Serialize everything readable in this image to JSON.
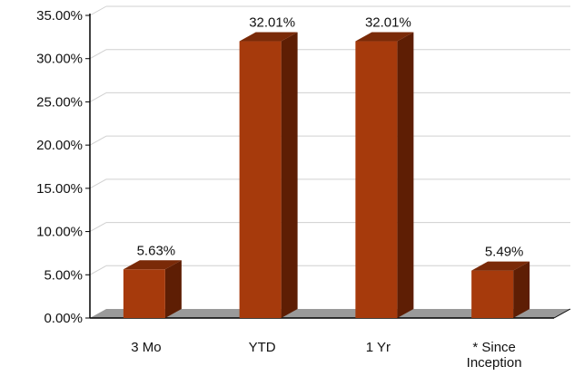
{
  "chart_data": {
    "type": "bar",
    "style": "3d-column",
    "categories": [
      "3 Mo",
      "YTD",
      "1 Yr",
      "* Since Inception"
    ],
    "category_lines": [
      [
        "3 Mo"
      ],
      [
        "YTD"
      ],
      [
        "1 Yr"
      ],
      [
        "* Since",
        "Inception"
      ]
    ],
    "values": [
      5.63,
      32.01,
      32.01,
      5.49
    ],
    "data_labels": [
      "5.63%",
      "32.01%",
      "32.01%",
      "5.49%"
    ],
    "ylim": [
      0,
      35
    ],
    "yticks": [
      0,
      5,
      10,
      15,
      20,
      25,
      30,
      35
    ],
    "ytick_labels": [
      "0.00%",
      "5.00%",
      "10.00%",
      "15.00%",
      "20.00%",
      "25.00%",
      "30.00%",
      "35.00%"
    ],
    "title": "",
    "xlabel": "",
    "ylabel": "",
    "grid": true,
    "legend": "none",
    "colors": {
      "bar_front": "#A63A0C",
      "bar_side": "#5E1E04",
      "bar_top": "#7A2A08",
      "floor": "#9A9A9A",
      "grid": "#D0D0D0",
      "axis": "#000000"
    }
  }
}
